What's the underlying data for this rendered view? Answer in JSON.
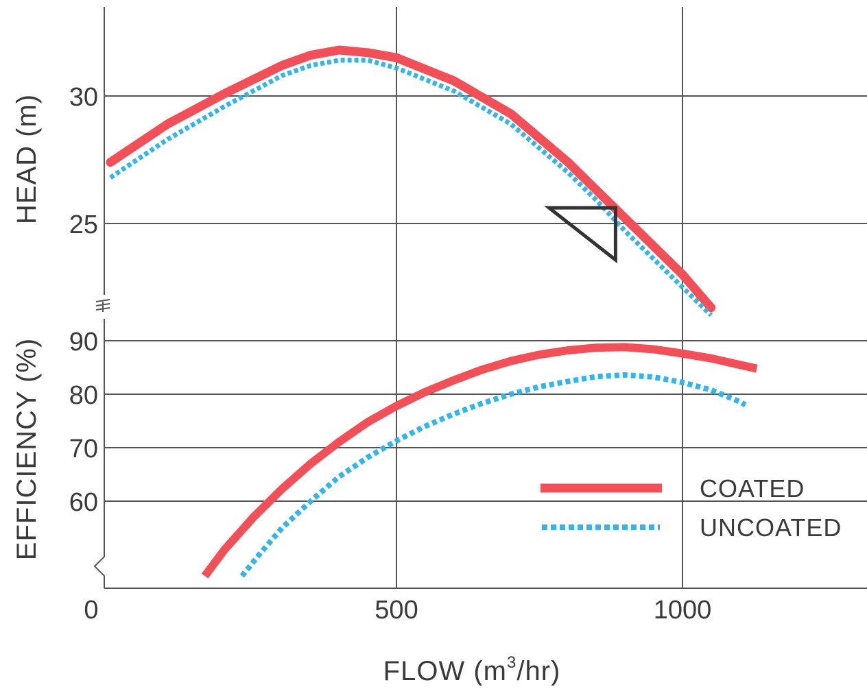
{
  "chart_data": [
    {
      "type": "line",
      "panel": "head",
      "ylabel": "HEAD (m)",
      "ylim": [
        22,
        33.5
      ],
      "xlim": [
        0,
        1350
      ],
      "y_ticks": [
        25,
        30
      ],
      "y_tick_labels": [
        "25",
        "30"
      ],
      "grid": true,
      "series": [
        {
          "name": "COATED",
          "color": "#f25058",
          "style": "solid",
          "x": [
            0,
            100,
            200,
            300,
            350,
            400,
            450,
            500,
            600,
            700,
            800,
            850,
            900,
            1000,
            1050
          ],
          "y": [
            27.4,
            28.9,
            30.1,
            31.2,
            31.6,
            31.8,
            31.7,
            31.5,
            30.6,
            29.3,
            27.4,
            26.3,
            25.2,
            23.0,
            21.7
          ]
        },
        {
          "name": "UNCOATED",
          "color": "#33b5ea",
          "style": "dotted",
          "x": [
            0,
            100,
            200,
            300,
            350,
            400,
            450,
            500,
            600,
            700,
            800,
            850,
            900,
            1000,
            1050
          ],
          "y": [
            26.8,
            28.3,
            29.6,
            30.8,
            31.2,
            31.4,
            31.4,
            31.1,
            30.2,
            28.9,
            27.0,
            25.9,
            24.7,
            22.5,
            21.4
          ]
        }
      ],
      "annotations": [
        {
          "type": "triangle-marker",
          "x": 865,
          "y": 25.4
        }
      ]
    },
    {
      "type": "line",
      "panel": "efficiency",
      "ylabel": "EFFICIENCY (%)",
      "xlabel_parts": [
        "FLOW (m",
        "3",
        "/hr)"
      ],
      "ylim": [
        46,
        93
      ],
      "xlim": [
        0,
        1350
      ],
      "y_ticks": [
        60,
        70,
        80,
        90
      ],
      "y_tick_labels": [
        "60",
        "70",
        "80",
        "90"
      ],
      "x_ticks": [
        0,
        500,
        1000
      ],
      "x_tick_labels": [
        "0",
        "500",
        "1000"
      ],
      "grid": true,
      "legend_position": "lower-right",
      "series": [
        {
          "name": "COATED",
          "color": "#f25058",
          "style": "solid",
          "x": [
            165,
            200,
            250,
            300,
            350,
            400,
            450,
            500,
            550,
            600,
            650,
            700,
            750,
            800,
            850,
            900,
            950,
            1000,
            1050,
            1100,
            1130
          ],
          "y": [
            46,
            51,
            57,
            62.3,
            67,
            71.1,
            74.8,
            77.8,
            80.4,
            82.6,
            84.6,
            86.2,
            87.4,
            88.2,
            88.7,
            88.8,
            88.4,
            87.6,
            86.7,
            85.5,
            84.8
          ]
        },
        {
          "name": "UNCOATED",
          "color": "#33b5ea",
          "style": "dotted",
          "x": [
            230,
            260,
            300,
            350,
            400,
            450,
            500,
            550,
            600,
            650,
            700,
            750,
            800,
            850,
            900,
            950,
            1000,
            1050,
            1100,
            1110
          ],
          "y": [
            46,
            50,
            55,
            60,
            64.6,
            68.2,
            71.3,
            74,
            76.3,
            78.3,
            80,
            81.4,
            82.4,
            83.3,
            83.6,
            83.2,
            82.2,
            80.8,
            78.6,
            78
          ]
        }
      ]
    }
  ]
}
